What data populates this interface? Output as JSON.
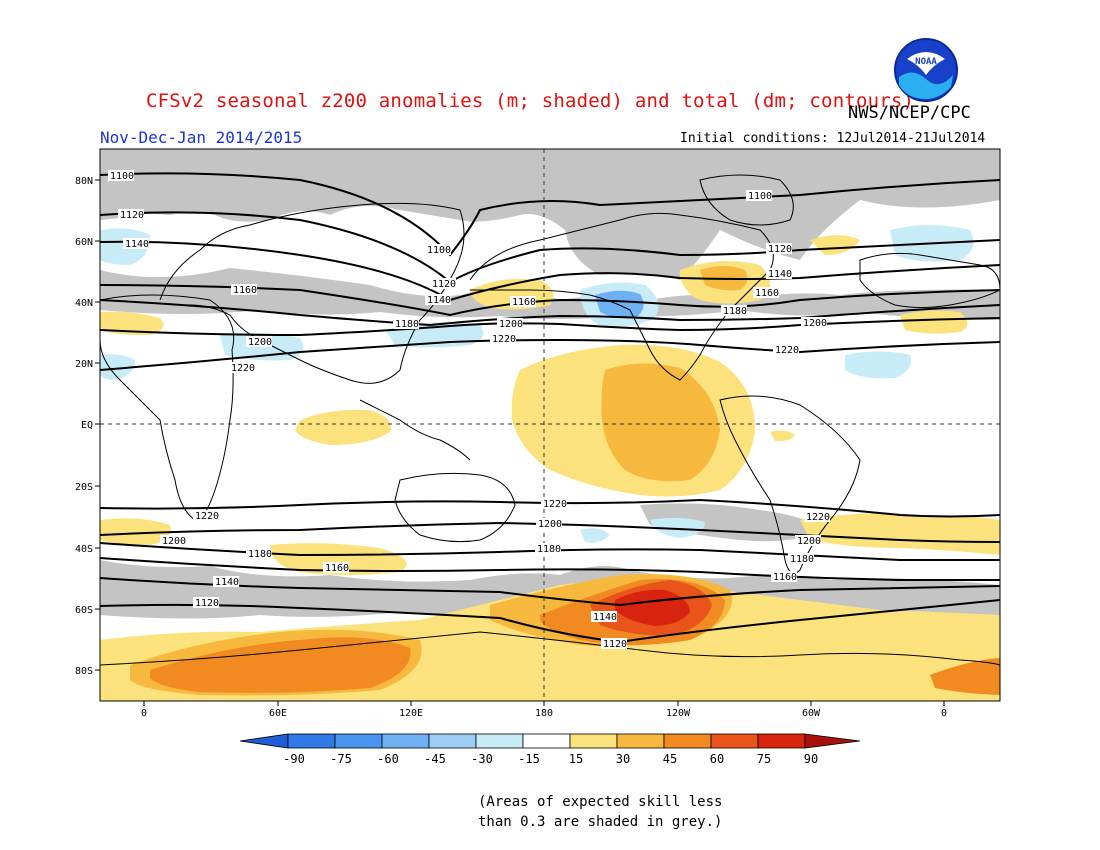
{
  "header": {
    "title": "CFSv2 seasonal z200 anomalies (m; shaded) and total (dm; contours)",
    "agency": "NWS/NCEP/CPC",
    "period": "Nov-Dec-Jan 2014/2015",
    "initial_conditions": "Initial conditions: 12Jul2014-21Jul2014",
    "logo_text": "NOAA"
  },
  "map": {
    "lat_labels": [
      "80N",
      "60N",
      "40N",
      "20N",
      "EQ",
      "20S",
      "40S",
      "60S",
      "80S"
    ],
    "lon_labels": [
      "0",
      "60E",
      "120E",
      "180",
      "120W",
      "60W",
      "0"
    ],
    "contour_labels": {
      "c1100": "1100",
      "c1120": "1120",
      "c1140": "1140",
      "c1160": "1160",
      "c1180": "1180",
      "c1200": "1200",
      "c1220": "1220"
    }
  },
  "colorbar": {
    "labels": [
      "-90",
      "-75",
      "-60",
      "-45",
      "-30",
      "-15",
      "15",
      "30",
      "45",
      "60",
      "75",
      "90"
    ],
    "colors": [
      "#1f5fd6",
      "#2f7ae6",
      "#4a95ee",
      "#6fb0f2",
      "#9ccdf5",
      "#c7ecf7",
      "#ffffff",
      "#fce27c",
      "#f7b93d",
      "#f08a21",
      "#e8541a",
      "#d8240e",
      "#a8100a",
      "#7a0606"
    ]
  },
  "note": {
    "line1": "(Areas of expected skill less",
    "line2": "than 0.3 are shaded in grey.)"
  }
}
